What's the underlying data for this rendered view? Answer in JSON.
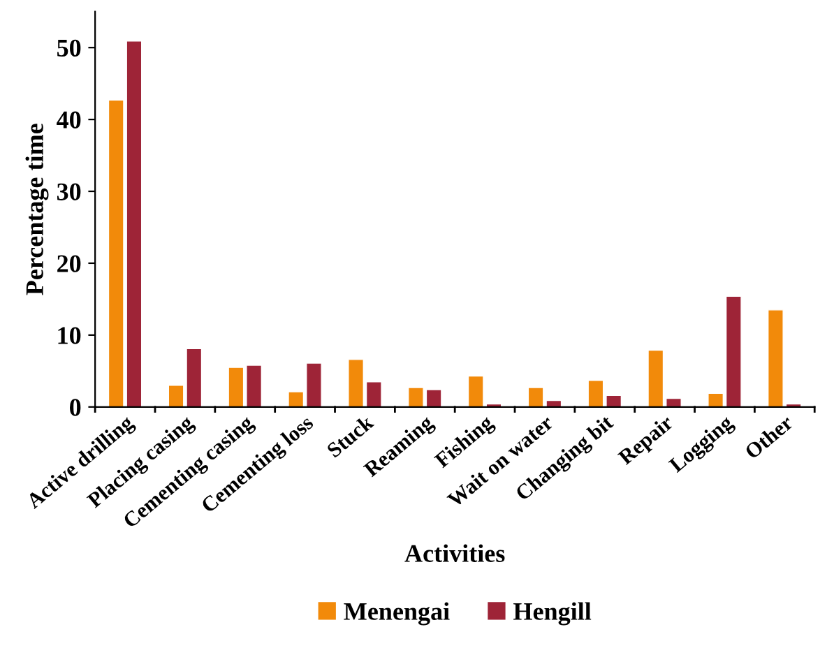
{
  "chart_data": {
    "type": "bar",
    "xlabel": "Activities",
    "ylabel": "Percentage time",
    "categories": [
      "Active drilling",
      "Placing casing",
      "Cementing casing",
      "Cementing loss",
      "Stuck",
      "Reaming",
      "Fishing",
      "Wait on water",
      "Changing bit",
      "Repair",
      "Logging",
      "Other"
    ],
    "series": [
      {
        "name": "Menengai",
        "color": "#f28a0a",
        "values": [
          42.7,
          3.0,
          5.5,
          2.1,
          6.6,
          2.7,
          4.3,
          2.7,
          3.7,
          7.9,
          1.9,
          13.5
        ]
      },
      {
        "name": "Hengill",
        "color": "#9e2437",
        "values": [
          50.9,
          8.1,
          5.8,
          6.1,
          3.5,
          2.4,
          0.4,
          0.9,
          1.6,
          1.2,
          15.4,
          0.4
        ]
      }
    ],
    "ylim": [
      0,
      55
    ],
    "yticks": [
      0,
      10,
      20,
      30,
      40,
      50
    ],
    "grid": false,
    "legend": "bottom"
  }
}
